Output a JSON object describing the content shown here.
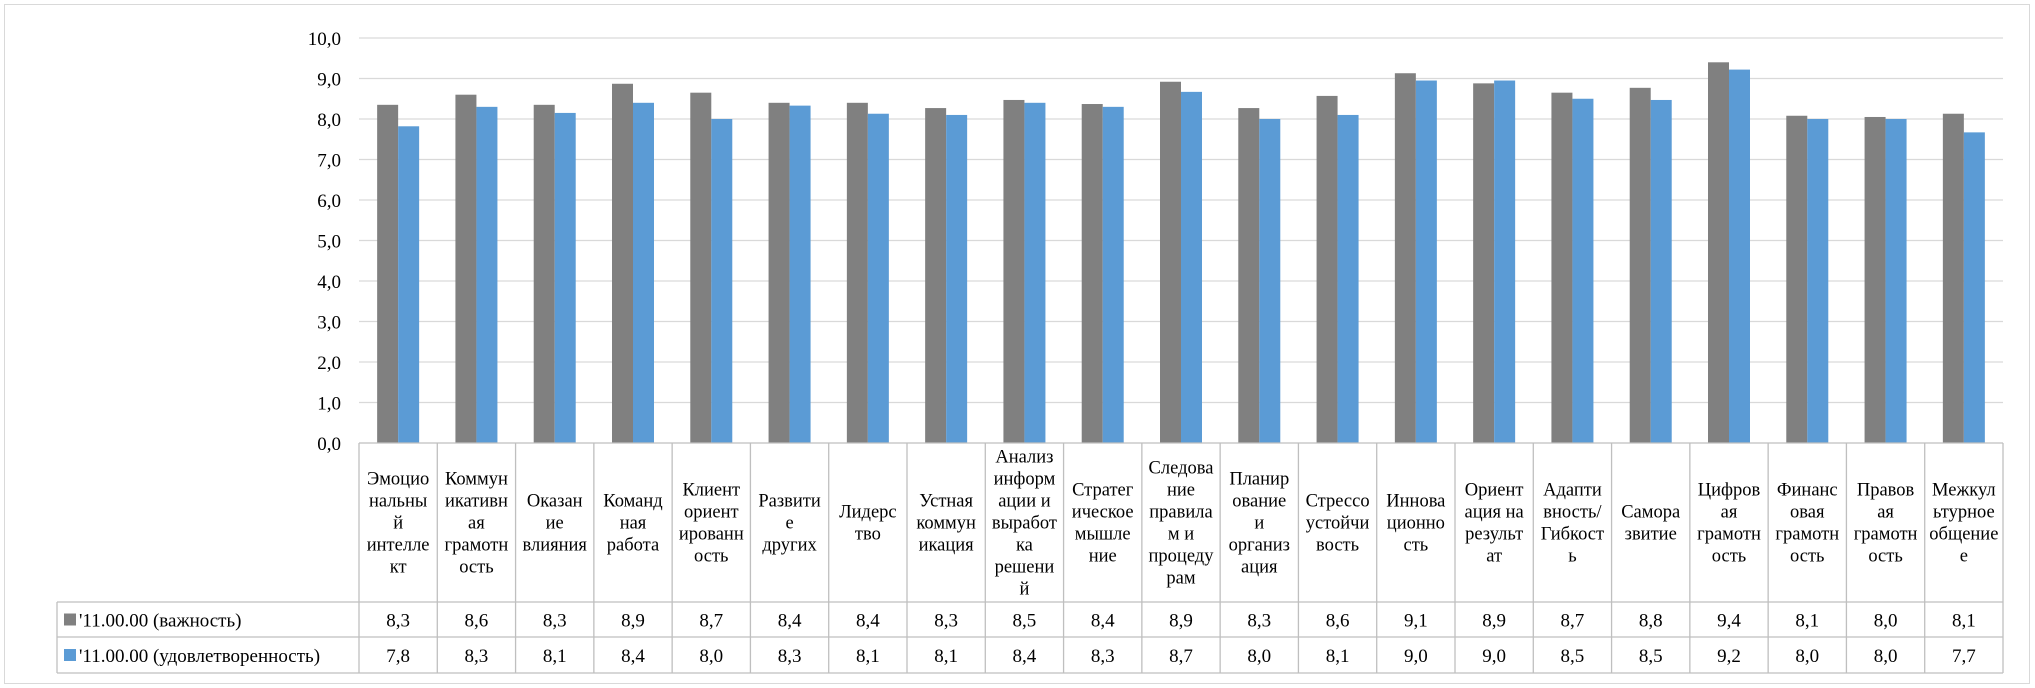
{
  "chart_data": {
    "type": "bar",
    "title": "",
    "xlabel": "",
    "ylabel": "",
    "ylim": [
      0,
      10
    ],
    "ytick_step": 1,
    "grid": true,
    "legend_position": "data-table-left",
    "categories": [
      [
        "Эмоцио",
        "нальны",
        "й",
        "интелле",
        "кт"
      ],
      [
        "Коммун",
        "икативн",
        "ая",
        "грамотн",
        "ость"
      ],
      [
        "Оказан",
        "ие",
        "влияния"
      ],
      [
        "Команд",
        "ная",
        "работа"
      ],
      [
        "Клиент",
        "ориент",
        "ированн",
        "ость"
      ],
      [
        "Развити",
        "е",
        "других"
      ],
      [
        "Лидерс",
        "тво"
      ],
      [
        "Устная",
        "коммун",
        "икация"
      ],
      [
        "Анализ",
        "информ",
        "ации и",
        "выработ",
        "ка",
        "решени",
        "й"
      ],
      [
        "Стратег",
        "ическое",
        "мышле",
        "ние"
      ],
      [
        "Следова",
        "ние",
        "правила",
        "м и",
        "процеду",
        "рам"
      ],
      [
        "Планир",
        "ование",
        "и",
        "организ",
        "ация"
      ],
      [
        "Стрессо",
        "устойчи",
        "вость"
      ],
      [
        "Иннова",
        "ционно",
        "сть"
      ],
      [
        "Ориент",
        "ация на",
        "результ",
        "ат"
      ],
      [
        "Адапти",
        "вность/",
        "Гибкост",
        "ь"
      ],
      [
        "Самора",
        "звитие"
      ],
      [
        "Цифров",
        "ая",
        "грамотн",
        "ость"
      ],
      [
        "Финанс",
        "овая",
        "грамотн",
        "ость"
      ],
      [
        "Правов",
        "ая",
        "грамотн",
        "ость"
      ],
      [
        "Межкул",
        "ьтурное",
        "общение",
        "е"
      ]
    ],
    "series": [
      {
        "name": "'11.00.00 (важность)",
        "color": "#808080",
        "values": [
          8.35,
          8.6,
          8.35,
          8.87,
          8.65,
          8.4,
          8.4,
          8.27,
          8.47,
          8.37,
          8.92,
          8.27,
          8.57,
          9.13,
          8.88,
          8.65,
          8.77,
          9.4,
          8.08,
          8.05,
          8.13
        ],
        "labels": [
          "8,3",
          "8,6",
          "8,3",
          "8,9",
          "8,7",
          "8,4",
          "8,4",
          "8,3",
          "8,5",
          "8,4",
          "8,9",
          "8,3",
          "8,6",
          "9,1",
          "8,9",
          "8,7",
          "8,8",
          "9,4",
          "8,1",
          "8,0",
          "8,1"
        ]
      },
      {
        "name": "'11.00.00 (удовлетворенность)",
        "color": "#5b9bd5",
        "values": [
          7.82,
          8.3,
          8.15,
          8.4,
          8.0,
          8.33,
          8.13,
          8.1,
          8.4,
          8.3,
          8.67,
          8.0,
          8.1,
          8.95,
          8.95,
          8.5,
          8.47,
          9.22,
          8.0,
          8.0,
          7.67
        ],
        "labels": [
          "7,8",
          "8,3",
          "8,1",
          "8,4",
          "8,0",
          "8,3",
          "8,1",
          "8,1",
          "8,4",
          "8,3",
          "8,7",
          "8,0",
          "8,1",
          "9,0",
          "9,0",
          "8,5",
          "8,5",
          "9,2",
          "8,0",
          "8,0",
          "7,7"
        ]
      }
    ],
    "ytick_labels": [
      "0,0",
      "1,0",
      "2,0",
      "3,0",
      "4,0",
      "5,0",
      "6,0",
      "7,0",
      "8,0",
      "9,0",
      "10,0"
    ]
  }
}
